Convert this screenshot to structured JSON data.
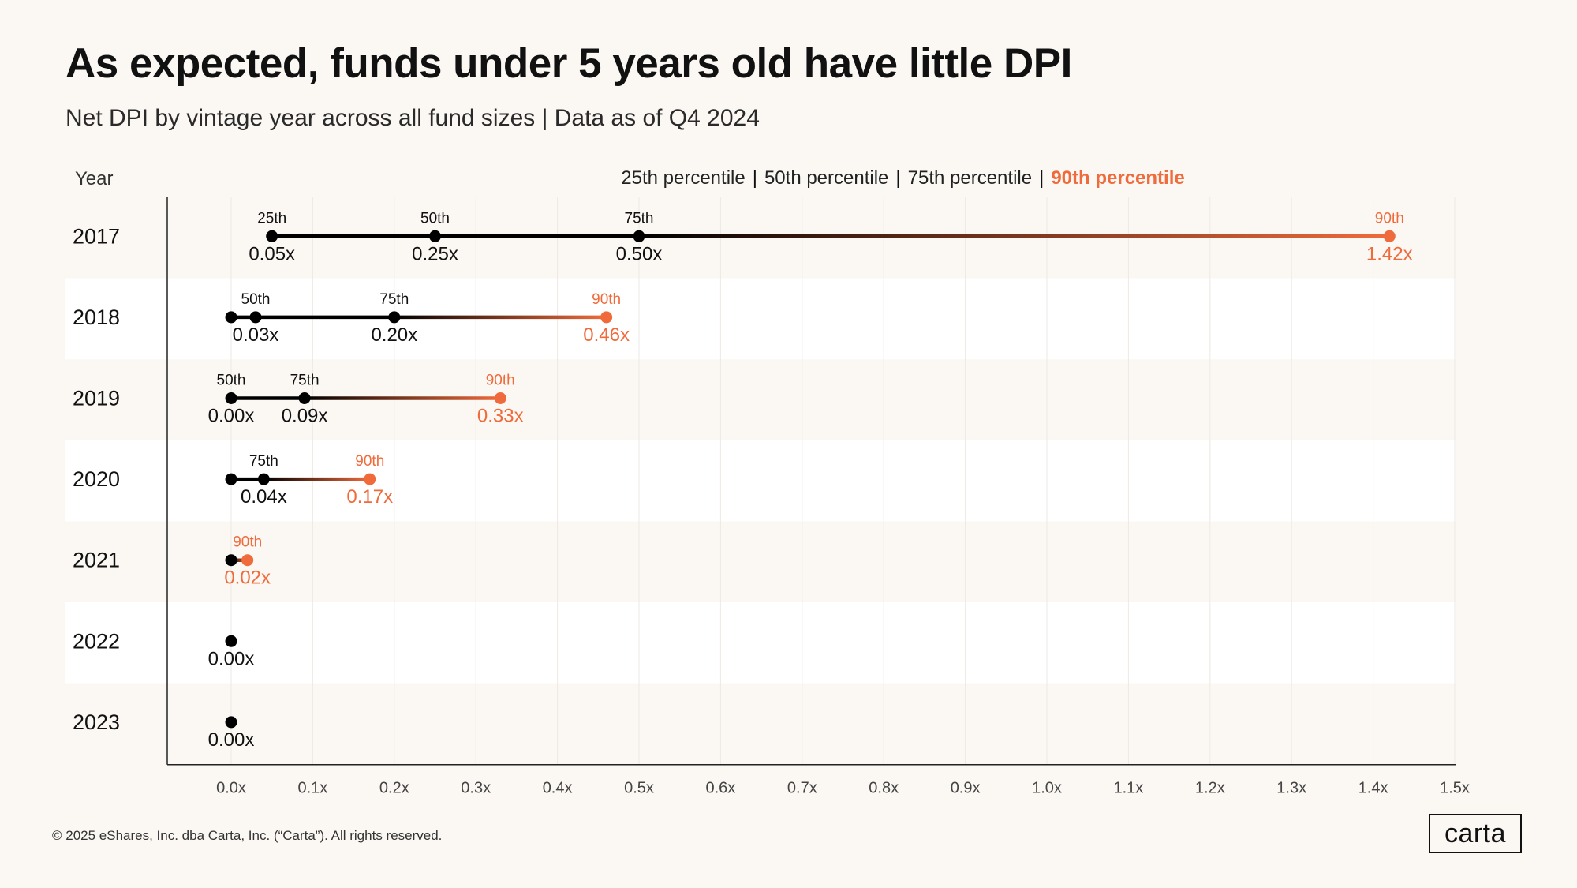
{
  "title": "As expected, funds under 5 years old have little DPI",
  "subtitle": "Net DPI by vintage year across all fund sizes | Data as of Q4 2024",
  "year_header": "Year",
  "legend": [
    "25th percentile",
    "50th percentile",
    "75th percentile",
    "90th percentile"
  ],
  "footer": "© 2025 eShares, Inc. dba Carta, Inc. (“Carta”). All rights reserved.",
  "logo_text": "carta",
  "colors": {
    "accent": "#f06b3c",
    "dark": "#000000",
    "background": "#fbf8f4",
    "band": "#ffffff"
  },
  "chart_data": {
    "type": "dumbbell",
    "xlabel": "",
    "xlim": [
      -0.08,
      1.5
    ],
    "xticks": [
      "0.0x",
      "0.1x",
      "0.2x",
      "0.3x",
      "0.4x",
      "0.5x",
      "0.6x",
      "0.7x",
      "0.8x",
      "0.9x",
      "1.0x",
      "1.1x",
      "1.2x",
      "1.3x",
      "1.4x",
      "1.5x"
    ],
    "tick_values": [
      0,
      0.1,
      0.2,
      0.3,
      0.4,
      0.5,
      0.6,
      0.7,
      0.8,
      0.9,
      1.0,
      1.1,
      1.2,
      1.3,
      1.4,
      1.5
    ],
    "rows": [
      {
        "year": "2017",
        "points": [
          {
            "pct": "25th",
            "value": 0.05,
            "value_label": "0.05x",
            "show_pct": true,
            "show_value": true
          },
          {
            "pct": "50th",
            "value": 0.25,
            "value_label": "0.25x",
            "show_pct": true,
            "show_value": true
          },
          {
            "pct": "75th",
            "value": 0.5,
            "value_label": "0.50x",
            "show_pct": true,
            "show_value": true
          },
          {
            "pct": "90th",
            "value": 1.42,
            "value_label": "1.42x",
            "show_pct": true,
            "show_value": true
          }
        ]
      },
      {
        "year": "2018",
        "points": [
          {
            "pct": "25th",
            "value": 0.0,
            "value_label": "",
            "show_pct": false,
            "show_value": false
          },
          {
            "pct": "50th",
            "value": 0.03,
            "value_label": "0.03x",
            "show_pct": true,
            "show_value": true
          },
          {
            "pct": "75th",
            "value": 0.2,
            "value_label": "0.20x",
            "show_pct": true,
            "show_value": true
          },
          {
            "pct": "90th",
            "value": 0.46,
            "value_label": "0.46x",
            "show_pct": true,
            "show_value": true
          }
        ]
      },
      {
        "year": "2019",
        "points": [
          {
            "pct": "50th",
            "value": 0.0,
            "value_label": "0.00x",
            "show_pct": true,
            "show_value": true
          },
          {
            "pct": "75th",
            "value": 0.09,
            "value_label": "0.09x",
            "show_pct": true,
            "show_value": true
          },
          {
            "pct": "90th",
            "value": 0.33,
            "value_label": "0.33x",
            "show_pct": true,
            "show_value": true
          }
        ]
      },
      {
        "year": "2020",
        "points": [
          {
            "pct": "50th",
            "value": 0.0,
            "value_label": "",
            "show_pct": false,
            "show_value": false
          },
          {
            "pct": "75th",
            "value": 0.04,
            "value_label": "0.04x",
            "show_pct": true,
            "show_value": true
          },
          {
            "pct": "90th",
            "value": 0.17,
            "value_label": "0.17x",
            "show_pct": true,
            "show_value": true
          }
        ]
      },
      {
        "year": "2021",
        "points": [
          {
            "pct": "75th",
            "value": 0.0,
            "value_label": "",
            "show_pct": false,
            "show_value": false
          },
          {
            "pct": "90th",
            "value": 0.02,
            "value_label": "0.02x",
            "show_pct": true,
            "show_value": true
          }
        ]
      },
      {
        "year": "2022",
        "points": [
          {
            "pct": "90th",
            "value": 0.0,
            "value_label": "0.00x",
            "show_pct": false,
            "show_value": true,
            "dark": true
          }
        ]
      },
      {
        "year": "2023",
        "points": [
          {
            "pct": "90th",
            "value": 0.0,
            "value_label": "0.00x",
            "show_pct": false,
            "show_value": true,
            "dark": true
          }
        ]
      }
    ]
  }
}
